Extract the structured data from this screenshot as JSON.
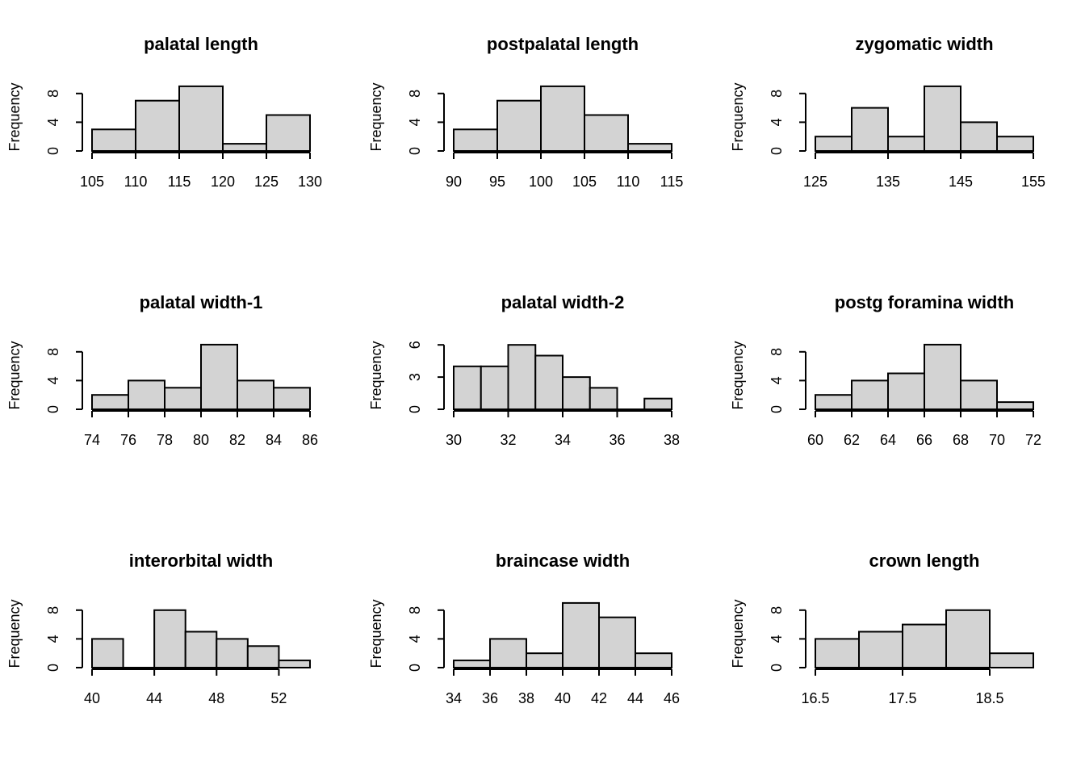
{
  "chart_data": [
    {
      "type": "bar",
      "title": "palatal length",
      "xlabel": "",
      "ylabel": "Frequency",
      "breaks": [
        105,
        110,
        115,
        120,
        125,
        130
      ],
      "values": [
        3,
        7,
        9,
        1,
        5
      ],
      "xticks": [
        105,
        110,
        115,
        120,
        125,
        130
      ],
      "xtick_labels": [
        "105",
        "110",
        "115",
        "120",
        "125",
        "130"
      ],
      "yticks": [
        0,
        4,
        8
      ],
      "ytick_labels": [
        "0",
        "4",
        "8"
      ],
      "ylim": [
        0,
        9
      ]
    },
    {
      "type": "bar",
      "title": "postpalatal length",
      "xlabel": "",
      "ylabel": "Frequency",
      "breaks": [
        90,
        95,
        100,
        105,
        110,
        115
      ],
      "values": [
        3,
        7,
        9,
        5,
        1
      ],
      "xticks": [
        90,
        95,
        100,
        105,
        110,
        115
      ],
      "xtick_labels": [
        "90",
        "95",
        "100",
        "105",
        "110",
        "115"
      ],
      "yticks": [
        0,
        4,
        8
      ],
      "ytick_labels": [
        "0",
        "4",
        "8"
      ],
      "ylim": [
        0,
        9
      ]
    },
    {
      "type": "bar",
      "title": "zygomatic width",
      "xlabel": "",
      "ylabel": "Frequency",
      "breaks": [
        125,
        130,
        135,
        140,
        145,
        150,
        155
      ],
      "values": [
        2,
        6,
        2,
        9,
        4,
        2
      ],
      "xticks": [
        125,
        135,
        145,
        155
      ],
      "xtick_labels": [
        "125",
        "135",
        "145",
        "155"
      ],
      "yticks": [
        0,
        4,
        8
      ],
      "ytick_labels": [
        "0",
        "4",
        "8"
      ],
      "ylim": [
        0,
        9
      ]
    },
    {
      "type": "bar",
      "title": "palatal width-1",
      "xlabel": "",
      "ylabel": "Frequency",
      "breaks": [
        74,
        76,
        78,
        80,
        82,
        84,
        86
      ],
      "values": [
        2,
        4,
        3,
        9,
        4,
        3
      ],
      "xticks": [
        74,
        76,
        78,
        80,
        82,
        84,
        86
      ],
      "xtick_labels": [
        "74",
        "76",
        "78",
        "80",
        "82",
        "84",
        "86"
      ],
      "yticks": [
        0,
        4,
        8
      ],
      "ytick_labels": [
        "0",
        "4",
        "8"
      ],
      "ylim": [
        0,
        9
      ]
    },
    {
      "type": "bar",
      "title": "palatal width-2",
      "xlabel": "",
      "ylabel": "Frequency",
      "breaks": [
        30,
        31,
        32,
        33,
        34,
        35,
        36,
        37,
        38
      ],
      "values": [
        4,
        4,
        6,
        5,
        3,
        2,
        0,
        1
      ],
      "xticks": [
        30,
        32,
        34,
        36,
        38
      ],
      "xtick_labels": [
        "30",
        "32",
        "34",
        "36",
        "38"
      ],
      "yticks": [
        0,
        3,
        6
      ],
      "ytick_labels": [
        "0",
        "3",
        "6"
      ],
      "ylim": [
        0,
        6
      ]
    },
    {
      "type": "bar",
      "title": "postg foramina width",
      "xlabel": "",
      "ylabel": "Frequency",
      "breaks": [
        60,
        62,
        64,
        66,
        68,
        70,
        72
      ],
      "values": [
        2,
        4,
        5,
        9,
        4,
        1
      ],
      "xticks": [
        60,
        62,
        64,
        66,
        68,
        70,
        72
      ],
      "xtick_labels": [
        "60",
        "62",
        "64",
        "66",
        "68",
        "70",
        "72"
      ],
      "yticks": [
        0,
        4,
        8
      ],
      "ytick_labels": [
        "0",
        "4",
        "8"
      ],
      "ylim": [
        0,
        9
      ]
    },
    {
      "type": "bar",
      "title": "interorbital width",
      "xlabel": "",
      "ylabel": "Frequency",
      "breaks": [
        40,
        42,
        44,
        46,
        48,
        50,
        52,
        54
      ],
      "values": [
        4,
        0,
        8,
        5,
        4,
        3,
        1
      ],
      "xticks": [
        40,
        44,
        48,
        52
      ],
      "xtick_labels": [
        "40",
        "44",
        "48",
        "52"
      ],
      "yticks": [
        0,
        4,
        8
      ],
      "ytick_labels": [
        "0",
        "4",
        "8"
      ],
      "ylim": [
        0,
        8
      ]
    },
    {
      "type": "bar",
      "title": "braincase width",
      "xlabel": "",
      "ylabel": "Frequency",
      "breaks": [
        34,
        36,
        38,
        40,
        42,
        44,
        46
      ],
      "values": [
        1,
        4,
        2,
        9,
        7,
        2
      ],
      "xticks": [
        34,
        36,
        38,
        40,
        42,
        44,
        46
      ],
      "xtick_labels": [
        "34",
        "36",
        "38",
        "40",
        "42",
        "44",
        "46"
      ],
      "yticks": [
        0,
        4,
        8
      ],
      "ytick_labels": [
        "0",
        "4",
        "8"
      ],
      "ylim": [
        0,
        9
      ]
    },
    {
      "type": "bar",
      "title": "crown length",
      "xlabel": "",
      "ylabel": "Frequency",
      "breaks": [
        16.5,
        17,
        17.5,
        18,
        18.5,
        19
      ],
      "values": [
        4,
        5,
        6,
        8,
        2
      ],
      "xticks": [
        16.5,
        17.5,
        18.5
      ],
      "xtick_labels": [
        "16.5",
        "17.5",
        "18.5"
      ],
      "yticks": [
        0,
        4,
        8
      ],
      "ytick_labels": [
        "0",
        "4",
        "8"
      ],
      "ylim": [
        0,
        8
      ]
    }
  ]
}
